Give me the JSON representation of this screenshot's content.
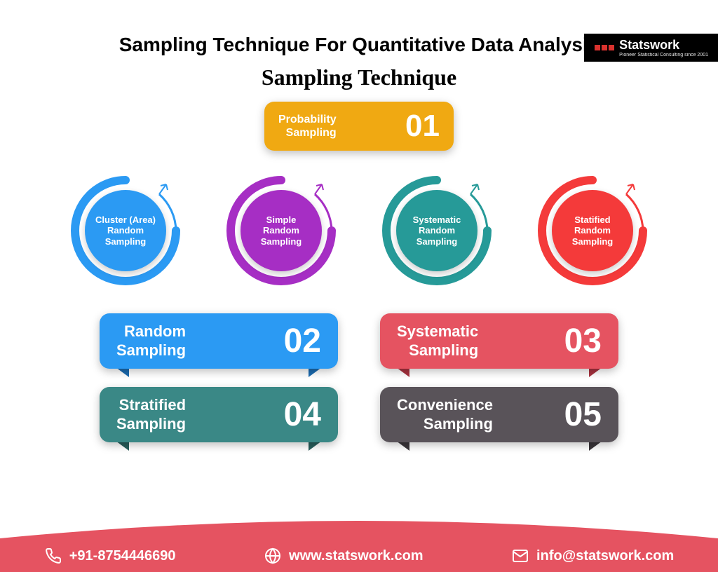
{
  "logo": {
    "brand": "Statswork",
    "tagline": "Pioneer Statistical Consulting since 2001",
    "cube_colors": [
      "#d9322e",
      "#d9322e",
      "#d9322e"
    ]
  },
  "title_main": "Sampling Technique For Quantitative Data Analysis",
  "title_sub": "Sampling Technique",
  "pill_top": {
    "label_l1": "Probability",
    "label_l2": "Sampling",
    "num": "01",
    "bg": "#f0a912"
  },
  "circles": [
    {
      "label_l1": "Cluster (Area)",
      "label_l2": "Random",
      "label_l3": "Sampling",
      "core": "#2b9af3",
      "ring": "#2b9af3"
    },
    {
      "label_l1": "Simple",
      "label_l2": "Random",
      "label_l3": "Sampling",
      "core": "#a62ec4",
      "ring": "#a62ec4"
    },
    {
      "label_l1": "Systematic",
      "label_l2": "Random",
      "label_l3": "Sampling",
      "core": "#269a98",
      "ring": "#269a98"
    },
    {
      "label_l1": "Statified",
      "label_l2": "Random",
      "label_l3": "Sampling",
      "core": "#f43a3a",
      "ring": "#f43a3a"
    }
  ],
  "pills_lower": [
    [
      {
        "label_l1": "Random",
        "label_l2": "Sampling",
        "num": "02",
        "bg": "#2b9af3",
        "ribbon": "#1b6bb0"
      },
      {
        "label_l1": "Systematic",
        "label_l2": "Sampling",
        "num": "03",
        "bg": "#e55361",
        "ribbon": "#a8323f"
      }
    ],
    [
      {
        "label_l1": "Stratified",
        "label_l2": "Sampling",
        "num": "04",
        "bg": "#3a8886",
        "ribbon": "#285e5c"
      },
      {
        "label_l1": "Convenience",
        "label_l2": "Sampling",
        "num": "05",
        "bg": "#595359",
        "ribbon": "#3a363a"
      }
    ]
  ],
  "footer": {
    "bg": "#e55361",
    "phone": "+91-8754446690",
    "web": "www.statswork.com",
    "email": "info@statswork.com"
  }
}
